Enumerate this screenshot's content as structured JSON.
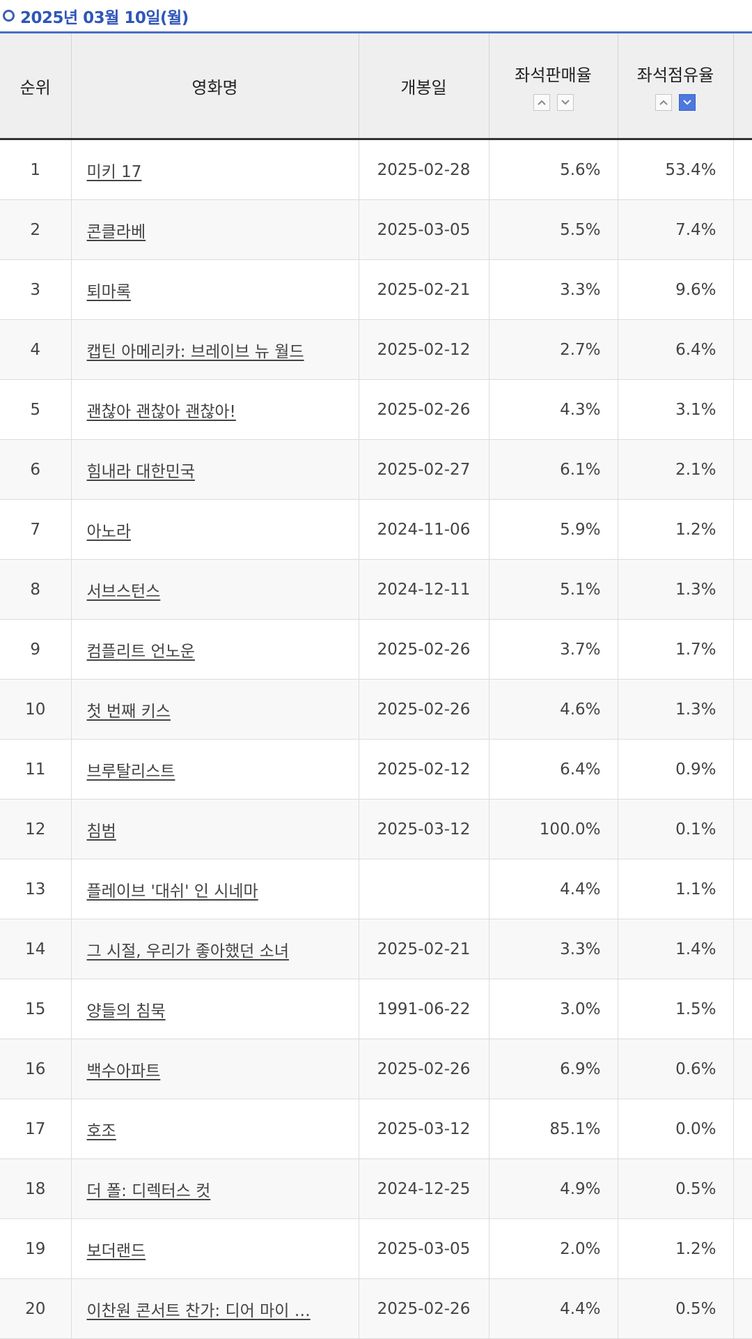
{
  "date_label": "2025년 03월 10일(월)",
  "headers": {
    "rank": "순위",
    "title": "영화명",
    "release": "개봉일",
    "seat_sales": "좌석판매율",
    "seat_share": "좌석점유율"
  },
  "sort_state": {
    "column": "seat_share",
    "direction": "desc"
  },
  "colors": {
    "accent": "#4a6cc7",
    "active_sort": "#4d78e0"
  },
  "rows": [
    {
      "rank": "1",
      "title": "미키 17",
      "release": "2025-02-28",
      "seat_sales": "5.6%",
      "seat_share": "53.4%"
    },
    {
      "rank": "2",
      "title": "콘클라베",
      "release": "2025-03-05",
      "seat_sales": "5.5%",
      "seat_share": "7.4%"
    },
    {
      "rank": "3",
      "title": "퇴마록",
      "release": "2025-02-21",
      "seat_sales": "3.3%",
      "seat_share": "9.6%"
    },
    {
      "rank": "4",
      "title": "캡틴 아메리카: 브레이브 뉴 월드",
      "release": "2025-02-12",
      "seat_sales": "2.7%",
      "seat_share": "6.4%"
    },
    {
      "rank": "5",
      "title": "괜찮아 괜찮아 괜찮아!",
      "release": "2025-02-26",
      "seat_sales": "4.3%",
      "seat_share": "3.1%"
    },
    {
      "rank": "6",
      "title": "힘내라 대한민국",
      "release": "2025-02-27",
      "seat_sales": "6.1%",
      "seat_share": "2.1%"
    },
    {
      "rank": "7",
      "title": "아노라",
      "release": "2024-11-06",
      "seat_sales": "5.9%",
      "seat_share": "1.2%"
    },
    {
      "rank": "8",
      "title": "서브스턴스",
      "release": "2024-12-11",
      "seat_sales": "5.1%",
      "seat_share": "1.3%"
    },
    {
      "rank": "9",
      "title": "컴플리트 언노운",
      "release": "2025-02-26",
      "seat_sales": "3.7%",
      "seat_share": "1.7%"
    },
    {
      "rank": "10",
      "title": "첫 번째 키스",
      "release": "2025-02-26",
      "seat_sales": "4.6%",
      "seat_share": "1.3%"
    },
    {
      "rank": "11",
      "title": "브루탈리스트",
      "release": "2025-02-12",
      "seat_sales": "6.4%",
      "seat_share": "0.9%"
    },
    {
      "rank": "12",
      "title": "침범",
      "release": "2025-03-12",
      "seat_sales": "100.0%",
      "seat_share": "0.1%"
    },
    {
      "rank": "13",
      "title": "플레이브 '대쉬' 인 시네마",
      "release": "",
      "seat_sales": "4.4%",
      "seat_share": "1.1%"
    },
    {
      "rank": "14",
      "title": "그 시절, 우리가 좋아했던 소녀",
      "release": "2025-02-21",
      "seat_sales": "3.3%",
      "seat_share": "1.4%"
    },
    {
      "rank": "15",
      "title": "양들의 침묵",
      "release": "1991-06-22",
      "seat_sales": "3.0%",
      "seat_share": "1.5%"
    },
    {
      "rank": "16",
      "title": "백수아파트",
      "release": "2025-02-26",
      "seat_sales": "6.9%",
      "seat_share": "0.6%"
    },
    {
      "rank": "17",
      "title": "호조",
      "release": "2025-03-12",
      "seat_sales": "85.1%",
      "seat_share": "0.0%"
    },
    {
      "rank": "18",
      "title": "더 폴: 디렉터스 컷",
      "release": "2024-12-25",
      "seat_sales": "4.9%",
      "seat_share": "0.5%"
    },
    {
      "rank": "19",
      "title": "보더랜드",
      "release": "2025-03-05",
      "seat_sales": "2.0%",
      "seat_share": "1.2%"
    },
    {
      "rank": "20",
      "title": "이찬원 콘서트 찬가: 디어 마이 …",
      "release": "2025-02-26",
      "seat_sales": "4.4%",
      "seat_share": "0.5%"
    }
  ]
}
